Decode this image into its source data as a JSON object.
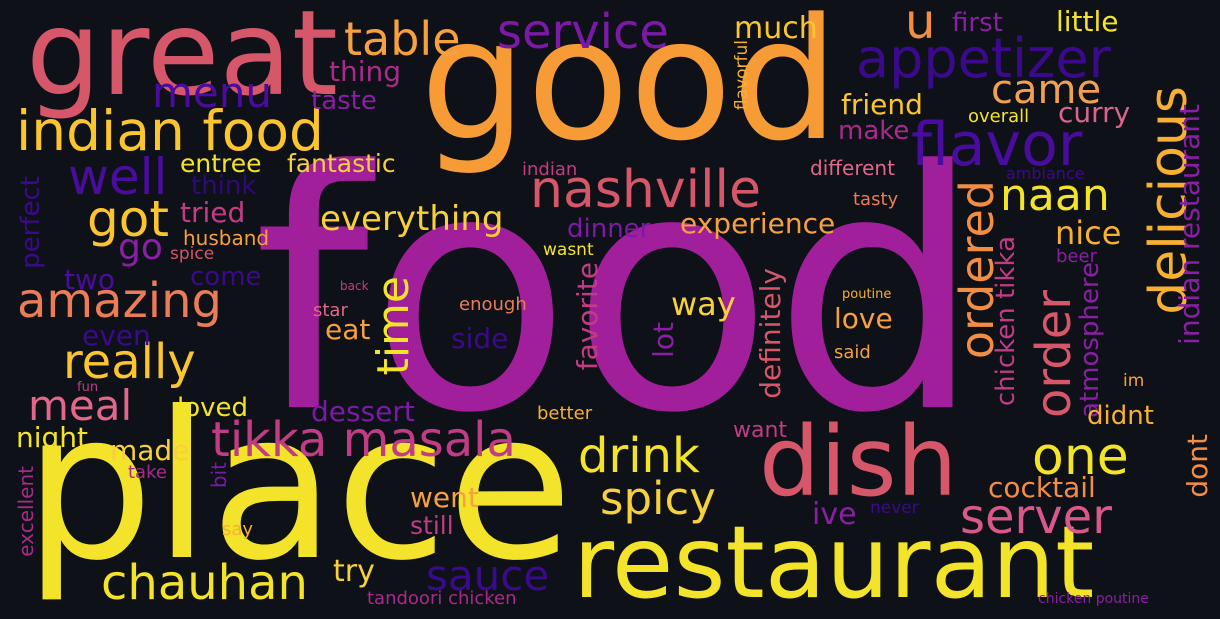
{
  "palette": {
    "background": "#0e1117",
    "purple": "#a21f9b",
    "orange": "#f79b36",
    "yellow": "#f3e32a",
    "pink": "#d6566a",
    "coral": "#eb7c58",
    "indigo": "#3b0a8c",
    "violet": "#7a1aa6",
    "gold": "#fbc530",
    "magenta": "#c13c84"
  },
  "words": [
    {
      "text": "food",
      "color": "#a21f9b"
    },
    {
      "text": "good",
      "color": "#f79b36"
    },
    {
      "text": "place",
      "color": "#f3e32a"
    },
    {
      "text": "great",
      "color": "#d6566a"
    },
    {
      "text": "restaurant",
      "color": "#f3e32a"
    },
    {
      "text": "dish",
      "color": "#d6566a"
    },
    {
      "text": "indian food",
      "color": "#fbc530"
    },
    {
      "text": "appetizer",
      "color": "#3b0a8c"
    },
    {
      "text": "nashville",
      "color": "#d6566a"
    },
    {
      "text": "delicious",
      "color": "#f7b032"
    },
    {
      "text": "flavor",
      "color": "#4a0c9e"
    },
    {
      "text": "tikka masala",
      "color": "#c13c84"
    },
    {
      "text": "amazing",
      "color": "#eb7c58"
    },
    {
      "text": "service",
      "color": "#7a1aa6"
    },
    {
      "text": "table",
      "color": "#f7a040"
    },
    {
      "text": "really",
      "color": "#fbc530"
    },
    {
      "text": "chauhan",
      "color": "#f3e32a"
    },
    {
      "text": "drink",
      "color": "#f3e32a"
    },
    {
      "text": "spicy",
      "color": "#f7d03c"
    },
    {
      "text": "server",
      "color": "#d8588a"
    },
    {
      "text": "ordered",
      "color": "#f28d44"
    },
    {
      "text": "order",
      "color": "#d6566a"
    },
    {
      "text": "one",
      "color": "#f3e32a"
    },
    {
      "text": "came",
      "color": "#f0a050"
    },
    {
      "text": "naan",
      "color": "#f3e32a"
    },
    {
      "text": "menu",
      "color": "#4a0c9e"
    },
    {
      "text": "well",
      "color": "#4a0c9e"
    },
    {
      "text": "got",
      "color": "#fbc530"
    },
    {
      "text": "meal",
      "color": "#e2678a"
    },
    {
      "text": "time",
      "color": "#f3e32a"
    },
    {
      "text": "everything",
      "color": "#f7d03c"
    },
    {
      "text": "sauce",
      "color": "#3b0a8c"
    },
    {
      "text": "u",
      "color": "#f28d44"
    },
    {
      "text": "indian restaurant",
      "color": "#8a1fa6"
    },
    {
      "text": "experience",
      "color": "#f7a040"
    },
    {
      "text": "nice",
      "color": "#f7b032"
    },
    {
      "text": "way",
      "color": "#f7d03c"
    },
    {
      "text": "love",
      "color": "#f7a040"
    },
    {
      "text": "friend",
      "color": "#fbc530"
    },
    {
      "text": "curry",
      "color": "#d9668a"
    },
    {
      "text": "first",
      "color": "#8a1fa6"
    },
    {
      "text": "little",
      "color": "#f3e32a"
    },
    {
      "text": "much",
      "color": "#fbc530"
    },
    {
      "text": "thing",
      "color": "#a82a8a"
    },
    {
      "text": "taste",
      "color": "#8a1fa6"
    },
    {
      "text": "entree",
      "color": "#f3e32a"
    },
    {
      "text": "fantastic",
      "color": "#f7d03c"
    },
    {
      "text": "think",
      "color": "#2e0a78"
    },
    {
      "text": "tried",
      "color": "#c13c84"
    },
    {
      "text": "husband",
      "color": "#f7a040"
    },
    {
      "text": "go",
      "color": "#8a1fa6"
    },
    {
      "text": "spice",
      "color": "#d6566a"
    },
    {
      "text": "two",
      "color": "#4a0c9e"
    },
    {
      "text": "come",
      "color": "#3b0a8c"
    },
    {
      "text": "perfect",
      "color": "#3b0a8c"
    },
    {
      "text": "even",
      "color": "#3b0a8c"
    },
    {
      "text": "eat",
      "color": "#f7a040"
    },
    {
      "text": "star",
      "color": "#e2678a"
    },
    {
      "text": "back",
      "color": "#c13c84"
    },
    {
      "text": "enough",
      "color": "#eb7c58"
    },
    {
      "text": "side",
      "color": "#3b0a8c"
    },
    {
      "text": "favorite",
      "color": "#c13c84"
    },
    {
      "text": "lot",
      "color": "#8a1fa6"
    },
    {
      "text": "definitely",
      "color": "#d6566a"
    },
    {
      "text": "dinner",
      "color": "#7a1aa6"
    },
    {
      "text": "wasnt",
      "color": "#f3e32a"
    },
    {
      "text": "indian",
      "color": "#c13c84"
    },
    {
      "text": "different",
      "color": "#e2678a"
    },
    {
      "text": "tasty",
      "color": "#eb7c58"
    },
    {
      "text": "ambiance",
      "color": "#3b0a8c"
    },
    {
      "text": "beer",
      "color": "#8a1fa6"
    },
    {
      "text": "flavorful",
      "color": "#f7b032"
    },
    {
      "text": "overall",
      "color": "#f3e32a"
    },
    {
      "text": "make",
      "color": "#a82a8a"
    },
    {
      "text": "chicken tikka",
      "color": "#c13c84"
    },
    {
      "text": "atmosphere",
      "color": "#8a1fa6"
    },
    {
      "text": "poutine",
      "color": "#f7b032"
    },
    {
      "text": "said",
      "color": "#f7a040"
    },
    {
      "text": "im",
      "color": "#f7a040"
    },
    {
      "text": "didnt",
      "color": "#f7b032"
    },
    {
      "text": "dont",
      "color": "#f28d44"
    },
    {
      "text": "cocktail",
      "color": "#f28d44"
    },
    {
      "text": "ive",
      "color": "#8a1fa6"
    },
    {
      "text": "never",
      "color": "#3b0a8c"
    },
    {
      "text": "went",
      "color": "#f7a040"
    },
    {
      "text": "still",
      "color": "#c13c84"
    },
    {
      "text": "try",
      "color": "#f7d03c"
    },
    {
      "text": "tandoori chicken",
      "color": "#a82a8a"
    },
    {
      "text": "chicken poutine",
      "color": "#8a1fa6"
    },
    {
      "text": "dessert",
      "color": "#7a1aa6"
    },
    {
      "text": "better",
      "color": "#f7b032"
    },
    {
      "text": "want",
      "color": "#c13c84"
    },
    {
      "text": "loved",
      "color": "#f3e32a"
    },
    {
      "text": "night",
      "color": "#f3e32a"
    },
    {
      "text": "made",
      "color": "#f7d03c"
    },
    {
      "text": "take",
      "color": "#a82a8a"
    },
    {
      "text": "bit",
      "color": "#7a1aa6"
    },
    {
      "text": "say",
      "color": "#f7b032"
    },
    {
      "text": "fun",
      "color": "#c13c84"
    },
    {
      "text": "excellent",
      "color": "#a82a8a"
    }
  ]
}
